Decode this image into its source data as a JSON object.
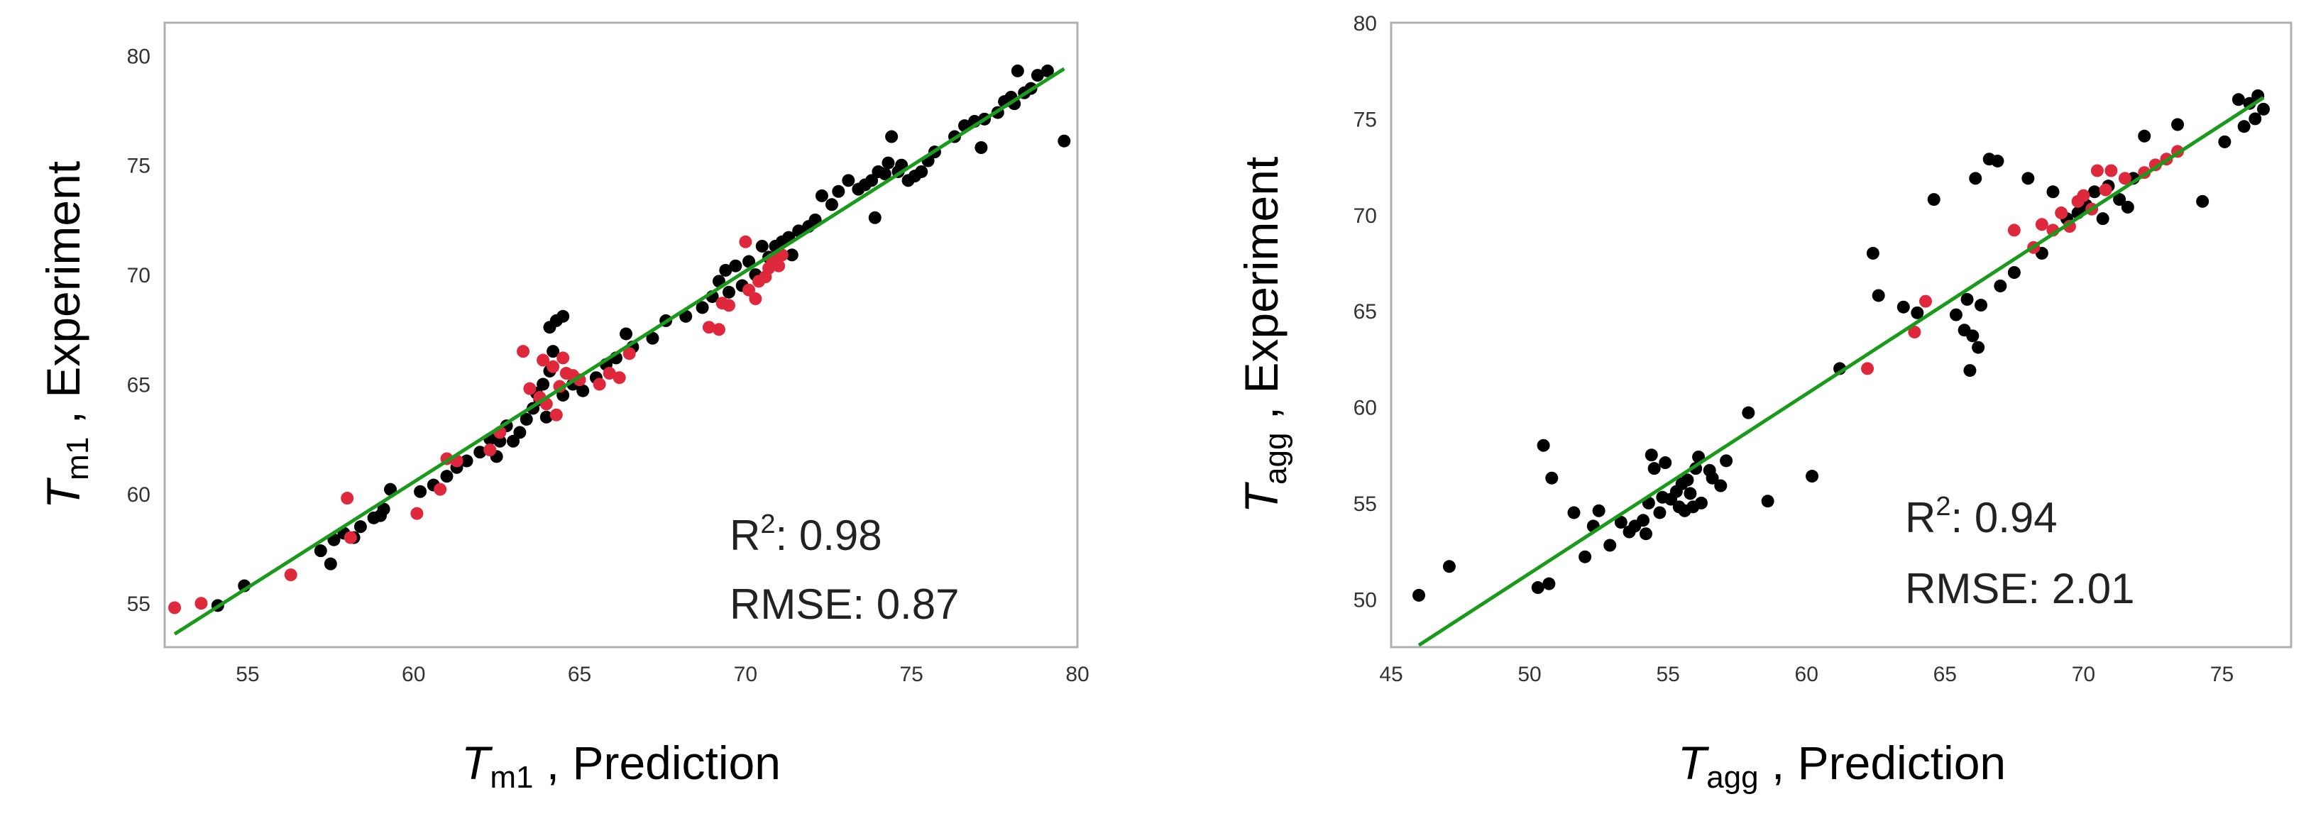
{
  "colors": {
    "train": "#000000",
    "test": "#e0283c",
    "fit_line": "#1a9a1a",
    "frame": "#b0b0b0"
  },
  "chart_data": [
    {
      "type": "scatter",
      "xlabel": {
        "symbol": "T",
        "subscript": "m1",
        "text": " , Prediction"
      },
      "ylabel": {
        "symbol": "T",
        "subscript": "m1",
        "text": " , Experiment"
      },
      "xlim": [
        52.5,
        80
      ],
      "ylim": [
        53,
        81.5
      ],
      "xticks": [
        "55",
        "60",
        "65",
        "70",
        "75",
        "80"
      ],
      "yticks": [
        "55",
        "60",
        "65",
        "70",
        "75",
        "80"
      ],
      "annotations": {
        "r2_label": "R",
        "r2_sup": "2",
        "r2_value": ": 0.98",
        "rmse": "RMSE: 0.87"
      },
      "fit_line": [
        [
          52.8,
          53.6
        ],
        [
          79.6,
          79.4
        ]
      ],
      "series": [
        {
          "color_key": "train",
          "points": [
            [
              54.1,
              54.9
            ],
            [
              54.9,
              55.8
            ],
            [
              57.2,
              57.4
            ],
            [
              57.5,
              56.8
            ],
            [
              57.6,
              57.9
            ],
            [
              57.9,
              58.2
            ],
            [
              58.2,
              58.0
            ],
            [
              58.4,
              58.5
            ],
            [
              58.8,
              58.9
            ],
            [
              59.0,
              59.0
            ],
            [
              59.1,
              59.3
            ],
            [
              59.3,
              60.2
            ],
            [
              60.2,
              60.1
            ],
            [
              60.6,
              60.4
            ],
            [
              61.0,
              60.8
            ],
            [
              61.3,
              61.2
            ],
            [
              61.6,
              61.5
            ],
            [
              62.0,
              61.9
            ],
            [
              62.3,
              62.5
            ],
            [
              62.5,
              61.7
            ],
            [
              62.6,
              62.4
            ],
            [
              62.8,
              63.1
            ],
            [
              63.0,
              62.4
            ],
            [
              63.2,
              62.8
            ],
            [
              63.4,
              63.4
            ],
            [
              63.6,
              63.9
            ],
            [
              63.7,
              64.6
            ],
            [
              63.8,
              64.3
            ],
            [
              63.9,
              65.0
            ],
            [
              64.0,
              63.5
            ],
            [
              64.1,
              65.6
            ],
            [
              64.2,
              66.5
            ],
            [
              64.1,
              67.6
            ],
            [
              64.3,
              67.9
            ],
            [
              64.5,
              68.1
            ],
            [
              64.5,
              64.5
            ],
            [
              64.8,
              65.0
            ],
            [
              65.1,
              64.7
            ],
            [
              65.5,
              65.3
            ],
            [
              65.8,
              65.9
            ],
            [
              66.1,
              66.2
            ],
            [
              66.4,
              67.3
            ],
            [
              66.6,
              66.7
            ],
            [
              67.2,
              67.1
            ],
            [
              67.6,
              67.9
            ],
            [
              68.2,
              68.1
            ],
            [
              68.7,
              68.5
            ],
            [
              69.0,
              69.0
            ],
            [
              69.2,
              69.7
            ],
            [
              69.4,
              70.2
            ],
            [
              69.5,
              69.2
            ],
            [
              69.7,
              70.4
            ],
            [
              69.9,
              69.5
            ],
            [
              70.1,
              70.6
            ],
            [
              70.3,
              70.0
            ],
            [
              70.5,
              71.3
            ],
            [
              70.7,
              70.8
            ],
            [
              70.9,
              71.3
            ],
            [
              71.1,
              71.5
            ],
            [
              71.3,
              71.7
            ],
            [
              71.4,
              70.9
            ],
            [
              71.6,
              72.0
            ],
            [
              71.9,
              72.2
            ],
            [
              72.1,
              72.5
            ],
            [
              72.3,
              73.6
            ],
            [
              72.6,
              73.2
            ],
            [
              72.8,
              73.8
            ],
            [
              73.1,
              74.3
            ],
            [
              73.4,
              73.9
            ],
            [
              73.6,
              74.1
            ],
            [
              73.8,
              74.3
            ],
            [
              73.9,
              72.6
            ],
            [
              74.0,
              74.7
            ],
            [
              74.2,
              74.6
            ],
            [
              74.3,
              75.1
            ],
            [
              74.4,
              76.3
            ],
            [
              74.6,
              74.7
            ],
            [
              74.7,
              75.0
            ],
            [
              74.9,
              74.3
            ],
            [
              75.1,
              74.5
            ],
            [
              75.3,
              74.7
            ],
            [
              75.5,
              75.2
            ],
            [
              75.7,
              75.6
            ],
            [
              76.3,
              76.3
            ],
            [
              76.6,
              76.8
            ],
            [
              76.9,
              77.0
            ],
            [
              77.1,
              75.8
            ],
            [
              77.2,
              77.1
            ],
            [
              77.6,
              77.4
            ],
            [
              77.8,
              77.9
            ],
            [
              78.0,
              78.1
            ],
            [
              78.1,
              77.8
            ],
            [
              78.2,
              79.3
            ],
            [
              78.4,
              78.3
            ],
            [
              78.6,
              78.5
            ],
            [
              78.8,
              79.1
            ],
            [
              79.1,
              79.3
            ],
            [
              79.6,
              76.1
            ]
          ]
        },
        {
          "color_key": "test",
          "points": [
            [
              52.8,
              54.8
            ],
            [
              53.6,
              55.0
            ],
            [
              56.3,
              56.3
            ],
            [
              58.0,
              59.8
            ],
            [
              58.1,
              58.0
            ],
            [
              60.1,
              59.1
            ],
            [
              60.8,
              60.2
            ],
            [
              61.0,
              61.6
            ],
            [
              61.3,
              61.5
            ],
            [
              62.3,
              62.0
            ],
            [
              62.6,
              62.8
            ],
            [
              63.3,
              66.5
            ],
            [
              63.5,
              64.8
            ],
            [
              63.8,
              64.4
            ],
            [
              63.9,
              66.1
            ],
            [
              64.0,
              64.1
            ],
            [
              64.2,
              65.8
            ],
            [
              64.3,
              63.6
            ],
            [
              64.4,
              64.9
            ],
            [
              64.5,
              66.2
            ],
            [
              64.6,
              65.5
            ],
            [
              64.8,
              65.4
            ],
            [
              65.0,
              65.2
            ],
            [
              65.6,
              65.0
            ],
            [
              65.9,
              65.5
            ],
            [
              66.2,
              65.3
            ],
            [
              66.5,
              66.4
            ],
            [
              68.9,
              67.6
            ],
            [
              69.2,
              67.5
            ],
            [
              69.3,
              68.7
            ],
            [
              69.5,
              68.6
            ],
            [
              70.0,
              71.5
            ],
            [
              70.1,
              69.3
            ],
            [
              70.3,
              68.9
            ],
            [
              70.4,
              69.7
            ],
            [
              70.6,
              69.9
            ],
            [
              70.7,
              70.3
            ],
            [
              70.8,
              70.7
            ],
            [
              71.0,
              70.4
            ],
            [
              71.1,
              70.9
            ]
          ]
        }
      ]
    },
    {
      "type": "scatter",
      "xlabel": {
        "symbol": "T",
        "subscript": "agg",
        "text": " , Prediction"
      },
      "ylabel": {
        "symbol": "T",
        "subscript": "agg",
        "text": " , Experiment"
      },
      "xlim": [
        45,
        77.5
      ],
      "ylim": [
        47.5,
        80
      ],
      "xticks": [
        "45",
        "50",
        "55",
        "60",
        "65",
        "70",
        "75"
      ],
      "yticks": [
        "50",
        "55",
        "60",
        "65",
        "70",
        "75",
        "80"
      ],
      "annotations": {
        "r2_label": "R",
        "r2_sup": "2",
        "r2_value": ": 0.94",
        "rmse": "RMSE: 2.01"
      },
      "fit_line": [
        [
          46.0,
          47.6
        ],
        [
          76.5,
          76.1
        ]
      ],
      "series": [
        {
          "color_key": "train",
          "points": [
            [
              46.0,
              50.2
            ],
            [
              47.1,
              51.7
            ],
            [
              50.3,
              50.6
            ],
            [
              50.5,
              58.0
            ],
            [
              50.7,
              50.8
            ],
            [
              50.8,
              56.3
            ],
            [
              51.6,
              54.5
            ],
            [
              52.0,
              52.2
            ],
            [
              52.3,
              53.8
            ],
            [
              52.5,
              54.6
            ],
            [
              52.9,
              52.8
            ],
            [
              53.3,
              54.0
            ],
            [
              53.6,
              53.5
            ],
            [
              53.8,
              53.8
            ],
            [
              54.1,
              54.1
            ],
            [
              54.2,
              53.4
            ],
            [
              54.3,
              55.0
            ],
            [
              54.4,
              57.5
            ],
            [
              54.5,
              56.8
            ],
            [
              54.7,
              54.5
            ],
            [
              54.8,
              55.3
            ],
            [
              54.9,
              57.1
            ],
            [
              55.1,
              55.2
            ],
            [
              55.3,
              55.6
            ],
            [
              55.4,
              54.8
            ],
            [
              55.5,
              56.0
            ],
            [
              55.6,
              54.6
            ],
            [
              55.7,
              56.2
            ],
            [
              55.8,
              55.5
            ],
            [
              55.9,
              54.8
            ],
            [
              56.0,
              56.8
            ],
            [
              56.1,
              57.4
            ],
            [
              56.2,
              55.0
            ],
            [
              56.5,
              56.7
            ],
            [
              56.6,
              56.3
            ],
            [
              56.9,
              55.9
            ],
            [
              57.1,
              57.2
            ],
            [
              57.9,
              59.7
            ],
            [
              58.6,
              55.1
            ],
            [
              60.2,
              56.4
            ],
            [
              61.2,
              62.0
            ],
            [
              62.4,
              68.0
            ],
            [
              62.6,
              65.8
            ],
            [
              63.5,
              65.2
            ],
            [
              64.0,
              64.9
            ],
            [
              64.6,
              70.8
            ],
            [
              65.4,
              64.8
            ],
            [
              65.7,
              64.0
            ],
            [
              65.8,
              65.6
            ],
            [
              65.9,
              61.9
            ],
            [
              66.0,
              63.7
            ],
            [
              66.1,
              71.9
            ],
            [
              66.2,
              63.1
            ],
            [
              66.3,
              65.3
            ],
            [
              66.6,
              72.9
            ],
            [
              66.9,
              72.8
            ],
            [
              67.0,
              66.3
            ],
            [
              67.5,
              67.0
            ],
            [
              68.0,
              71.9
            ],
            [
              68.5,
              68.0
            ],
            [
              68.9,
              71.2
            ],
            [
              69.4,
              69.8
            ],
            [
              69.8,
              70.1
            ],
            [
              70.1,
              70.5
            ],
            [
              70.4,
              71.2
            ],
            [
              70.7,
              69.8
            ],
            [
              70.9,
              71.5
            ],
            [
              71.3,
              70.8
            ],
            [
              71.6,
              70.4
            ],
            [
              71.8,
              71.9
            ],
            [
              72.2,
              74.1
            ],
            [
              73.4,
              74.7
            ],
            [
              74.3,
              70.7
            ],
            [
              75.1,
              73.8
            ],
            [
              75.6,
              76.0
            ],
            [
              75.8,
              74.6
            ],
            [
              76.0,
              75.8
            ],
            [
              76.2,
              75.0
            ],
            [
              76.3,
              76.2
            ],
            [
              76.5,
              75.5
            ]
          ]
        },
        {
          "color_key": "test",
          "points": [
            [
              62.2,
              62.0
            ],
            [
              63.9,
              63.9
            ],
            [
              64.3,
              65.5
            ],
            [
              67.5,
              69.2
            ],
            [
              68.2,
              68.3
            ],
            [
              68.5,
              69.5
            ],
            [
              68.9,
              69.2
            ],
            [
              69.2,
              70.1
            ],
            [
              69.5,
              69.4
            ],
            [
              69.8,
              70.7
            ],
            [
              70.0,
              71.0
            ],
            [
              70.3,
              70.3
            ],
            [
              70.5,
              72.3
            ],
            [
              70.8,
              71.3
            ],
            [
              71.0,
              72.3
            ],
            [
              71.5,
              71.9
            ],
            [
              72.2,
              72.2
            ],
            [
              72.6,
              72.6
            ],
            [
              73.0,
              72.9
            ],
            [
              73.4,
              73.3
            ]
          ]
        }
      ]
    }
  ]
}
